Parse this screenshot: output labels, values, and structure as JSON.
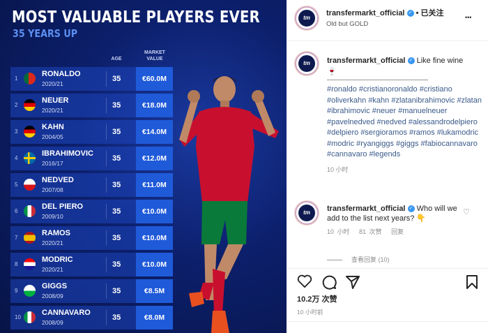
{
  "graphic": {
    "title": "MOST VALUABLE PLAYERS EVER",
    "subtitle": "35 YEARS UP",
    "col_age": "AGE",
    "col_value": "MARKET VALUE",
    "rows": [
      {
        "rank": "1",
        "name": "RONALDO",
        "season": "2020/21",
        "age": "35",
        "value": "€60.0M",
        "flag": "portugal"
      },
      {
        "rank": "2",
        "name": "NEUER",
        "season": "2020/21",
        "age": "35",
        "value": "€18.0M",
        "flag": "germany"
      },
      {
        "rank": "3",
        "name": "KAHN",
        "season": "2004/05",
        "age": "35",
        "value": "€14.0M",
        "flag": "germany"
      },
      {
        "rank": "4",
        "name": "IBRAHIMOVIC",
        "season": "2016/17",
        "age": "35",
        "value": "€12.0M",
        "flag": "sweden"
      },
      {
        "rank": "5",
        "name": "NEDVED",
        "season": "2007/08",
        "age": "35",
        "value": "€11.0M",
        "flag": "czech"
      },
      {
        "rank": "6",
        "name": "DEL PIERO",
        "season": "2009/10",
        "age": "35",
        "value": "€10.0M",
        "flag": "italy"
      },
      {
        "rank": "7",
        "name": "RAMOS",
        "season": "2020/21",
        "age": "35",
        "value": "€10.0M",
        "flag": "spain"
      },
      {
        "rank": "8",
        "name": "MODRIC",
        "season": "2020/21",
        "age": "35",
        "value": "€10.0M",
        "flag": "croatia"
      },
      {
        "rank": "9",
        "name": "GIGGS",
        "season": "2008/09",
        "age": "35",
        "value": "€8.5M",
        "flag": "wales"
      },
      {
        "rank": "10",
        "name": "CANNAVARO",
        "season": "2008/09",
        "age": "35",
        "value": "€8.0M",
        "flag": "italy"
      }
    ]
  },
  "post": {
    "avatar_text": "tm",
    "username": "transfermarkt_official",
    "follow_status": "• 已关注",
    "location": "Old but GOLD",
    "more": "•••",
    "caption_text": "Like fine wine",
    "caption_emoji": "🍷",
    "hashtags": "#ronaldo #cristianoronaldo #cristiano #oliverkahn #kahn #zlatanibrahimovic #zlatan #ibrahimovic #neuer #manuelneuer #pavelnedved #nedved #alessandrodelpiero #delpiero #sergioramos #ramos #lukamodric #modric #ryangiggs #giggs #fabiocannavaro #cannavaro #legends",
    "caption_time": "10 小时",
    "comment_text": "Who will we add to the list next years?",
    "comment_emoji": "👇",
    "comment_time": "10 小时",
    "comment_likes": "81 次赞",
    "reply": "回复",
    "view_replies": "查看回复 (10)",
    "likes": "10.2万 次赞",
    "post_time": "10 小时前"
  }
}
